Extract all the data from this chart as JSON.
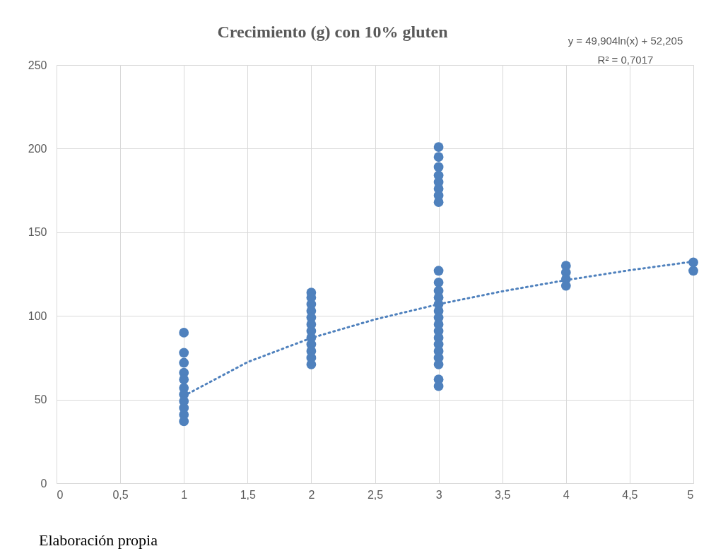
{
  "chart_data": {
    "type": "scatter",
    "title": "Crecimiento (g) con 10% gluten",
    "series": [
      {
        "color": "#4f81bd",
        "marker": "circle",
        "x": [
          1,
          1,
          1,
          1,
          1,
          1,
          1,
          1,
          1,
          1,
          1,
          2,
          2,
          2,
          2,
          2,
          2,
          2,
          2,
          2,
          2,
          2,
          2,
          3,
          3,
          3,
          3,
          3,
          3,
          3,
          3,
          3,
          3,
          3,
          3,
          3,
          3,
          3,
          3,
          3,
          3,
          3,
          3,
          3,
          3,
          3,
          3,
          4,
          4,
          4,
          4,
          5,
          5
        ],
        "values": [
          90,
          78,
          72,
          66,
          62,
          57,
          53,
          49,
          45,
          41,
          37,
          114,
          111,
          107,
          103,
          99,
          95,
          91,
          87,
          83,
          79,
          75,
          71,
          201,
          195,
          189,
          184,
          180,
          176,
          172,
          168,
          127,
          120,
          115,
          111,
          107,
          103,
          99,
          95,
          91,
          87,
          83,
          79,
          75,
          71,
          62,
          58,
          130,
          126,
          122,
          118,
          132,
          127
        ]
      },
      {
        "type": "line",
        "color": "#4f81bd",
        "line_style": "dotted",
        "marker": "none",
        "x": [
          1,
          1.5,
          2,
          2.5,
          3,
          3.5,
          4,
          4.5,
          5
        ],
        "values": [
          52.2,
          72.4,
          86.8,
          97.9,
          107.0,
          114.7,
          121.4,
          127.3,
          132.5
        ]
      }
    ],
    "xlim": [
      0,
      5
    ],
    "xticks": [
      0,
      {
        "value": 0.5,
        "label": "0,5"
      },
      1,
      {
        "value": 1.5,
        "label": "1,5"
      },
      2,
      {
        "value": 2.5,
        "label": "2,5"
      },
      3,
      {
        "value": 3.5,
        "label": "3,5"
      },
      4,
      {
        "value": 4.5,
        "label": "4,5"
      },
      5
    ],
    "ylim": [
      0,
      250
    ],
    "yticks": [
      0,
      50,
      100,
      150,
      200,
      250
    ],
    "grid": true,
    "annotations": [
      "y = 49,904ln(x) + 52,205",
      "R² = 0,7017",
      "Elaboración propia"
    ]
  }
}
